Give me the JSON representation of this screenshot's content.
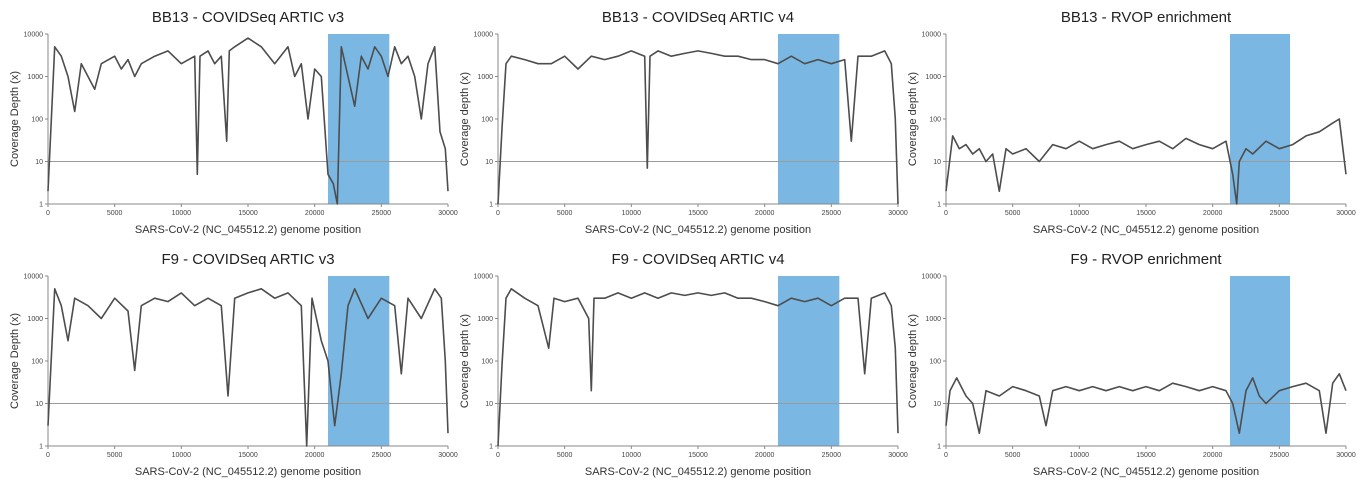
{
  "figure": {
    "x_axis_label": "SARS-CoV-2 (NC_045512.2) genome position",
    "xlim": [
      0,
      30000
    ],
    "ylim": [
      1,
      10000
    ],
    "yscale": "log",
    "x_ticks": [
      "0",
      "5000",
      "10000",
      "15000",
      "20000",
      "25000",
      "30000"
    ],
    "y_ticks": [
      "1",
      "10",
      "100",
      "1000",
      "10000"
    ],
    "reference_line_y": 10,
    "colors": {
      "line": "#4d4d4d",
      "highlight": "#7ab8e3",
      "reference": "#9a9a9a"
    }
  },
  "chart_data": [
    {
      "type": "line",
      "title": "BB13 - COVIDSeq ARTIC v3",
      "xlabel": "SARS-CoV-2 (NC_045512.2) genome position",
      "ylabel": "Coverage Depth (x)",
      "xlim": [
        0,
        30000
      ],
      "ylim": [
        1,
        10000
      ],
      "yscale": "log",
      "highlight_region": [
        21000,
        25600
      ],
      "x": [
        0,
        500,
        1000,
        1500,
        2000,
        2500,
        3000,
        3500,
        4000,
        5000,
        5500,
        6000,
        6500,
        7000,
        8000,
        9000,
        10000,
        11000,
        11200,
        11400,
        12000,
        12500,
        13000,
        13400,
        13600,
        14000,
        15000,
        16000,
        17000,
        18000,
        18500,
        19000,
        19500,
        20000,
        20500,
        21000,
        21400,
        21700,
        22000,
        22500,
        23000,
        23500,
        24000,
        24500,
        25000,
        25500,
        26000,
        26500,
        27000,
        27500,
        28000,
        28500,
        29000,
        29400,
        29800,
        30000
      ],
      "y": [
        2,
        5000,
        3000,
        1000,
        150,
        2000,
        1000,
        500,
        2000,
        3000,
        1500,
        2500,
        1000,
        2000,
        3000,
        4000,
        2000,
        3000,
        5,
        3000,
        4000,
        2000,
        3000,
        30,
        4000,
        5000,
        8000,
        5000,
        2000,
        5000,
        1000,
        2000,
        100,
        1500,
        1000,
        5,
        3,
        1,
        5000,
        1000,
        200,
        3000,
        1500,
        5000,
        3000,
        1000,
        5000,
        2000,
        3000,
        1000,
        100,
        2000,
        5000,
        50,
        20,
        2
      ]
    },
    {
      "type": "line",
      "title": "BB13 - COVIDSeq ARTIC v4",
      "xlabel": "SARS-CoV-2 (NC_045512.2) genome position",
      "ylabel": "Coverage depth (x)",
      "xlim": [
        0,
        30000
      ],
      "ylim": [
        1,
        10000
      ],
      "yscale": "log",
      "highlight_region": [
        21000,
        25600
      ],
      "x": [
        0,
        300,
        600,
        1000,
        2000,
        3000,
        4000,
        5000,
        6000,
        7000,
        8000,
        9000,
        10000,
        11000,
        11200,
        11400,
        12000,
        13000,
        14000,
        15000,
        16000,
        17000,
        18000,
        19000,
        20000,
        21000,
        22000,
        23000,
        24000,
        25000,
        26000,
        26500,
        27000,
        28000,
        29000,
        29500,
        29800,
        30000
      ],
      "y": [
        1,
        60,
        2000,
        3000,
        2500,
        2000,
        2000,
        3000,
        1500,
        3000,
        2500,
        3000,
        4000,
        3000,
        7,
        3000,
        4000,
        3000,
        3500,
        4000,
        3500,
        3000,
        3000,
        2500,
        2500,
        2000,
        3000,
        2000,
        2500,
        2000,
        2500,
        30,
        3000,
        3000,
        4000,
        2000,
        100,
        1
      ]
    },
    {
      "type": "line",
      "title": "BB13 - RVOP enrichment",
      "xlabel": "SARS-CoV-2 (NC_045512.2) genome position",
      "ylabel": "Coverage depth (x)",
      "xlim": [
        0,
        30000
      ],
      "ylim": [
        1,
        10000
      ],
      "yscale": "log",
      "highlight_region": [
        21300,
        25800
      ],
      "x": [
        0,
        500,
        1000,
        1500,
        2000,
        2500,
        3000,
        3500,
        4000,
        4500,
        5000,
        6000,
        7000,
        8000,
        9000,
        10000,
        11000,
        12000,
        13000,
        14000,
        15000,
        16000,
        17000,
        18000,
        19000,
        20000,
        21000,
        21500,
        21800,
        22000,
        22500,
        23000,
        24000,
        25000,
        26000,
        27000,
        28000,
        29000,
        29500,
        30000
      ],
      "y": [
        2,
        40,
        20,
        25,
        15,
        20,
        10,
        15,
        2,
        20,
        15,
        20,
        10,
        25,
        20,
        30,
        20,
        25,
        30,
        20,
        25,
        30,
        20,
        35,
        25,
        20,
        30,
        5,
        1,
        10,
        20,
        15,
        30,
        20,
        25,
        40,
        50,
        80,
        100,
        5
      ]
    },
    {
      "type": "line",
      "title": "F9 - COVIDSeq ARTIC v3",
      "xlabel": "SARS-CoV-2 (NC_045512.2) genome position",
      "ylabel": "Coverage Depth (x)",
      "xlim": [
        0,
        30000
      ],
      "ylim": [
        1,
        10000
      ],
      "yscale": "log",
      "highlight_region": [
        21000,
        25600
      ],
      "x": [
        0,
        500,
        1000,
        1500,
        2000,
        3000,
        4000,
        5000,
        6000,
        6500,
        7000,
        8000,
        9000,
        10000,
        11000,
        12000,
        13000,
        13500,
        14000,
        15000,
        16000,
        17000,
        18000,
        19000,
        19400,
        19800,
        20500,
        21000,
        21500,
        22000,
        22500,
        23000,
        24000,
        25000,
        26000,
        26500,
        27000,
        28000,
        29000,
        29500,
        29800,
        30000
      ],
      "y": [
        3,
        5000,
        2000,
        300,
        3000,
        2000,
        1000,
        3000,
        1500,
        60,
        2000,
        3000,
        2500,
        4000,
        2000,
        3000,
        2000,
        15,
        3000,
        4000,
        5000,
        3000,
        4000,
        2000,
        1,
        3000,
        300,
        100,
        3,
        50,
        2000,
        5000,
        1000,
        3000,
        2000,
        50,
        3000,
        1000,
        5000,
        3000,
        100,
        2
      ]
    },
    {
      "type": "line",
      "title": "F9 - COVIDSeq ARTIC v4",
      "xlabel": "SARS-CoV-2 (NC_045512.2) genome position",
      "ylabel": "Coverage depth (x)",
      "xlim": [
        0,
        30000
      ],
      "ylim": [
        1,
        10000
      ],
      "yscale": "log",
      "highlight_region": [
        21000,
        25600
      ],
      "x": [
        0,
        300,
        600,
        1000,
        2000,
        3000,
        3800,
        4200,
        5000,
        6000,
        6800,
        7000,
        7200,
        8000,
        9000,
        10000,
        11000,
        12000,
        13000,
        14000,
        15000,
        16000,
        17000,
        18000,
        19000,
        20000,
        21000,
        22000,
        23000,
        24000,
        25000,
        26000,
        27000,
        27500,
        28000,
        29000,
        29500,
        29800,
        30000
      ],
      "y": [
        1,
        80,
        3000,
        5000,
        3000,
        2000,
        200,
        3000,
        2500,
        3000,
        1000,
        20,
        3000,
        3000,
        4000,
        3000,
        4000,
        3000,
        4000,
        3500,
        4000,
        3500,
        4000,
        3000,
        3000,
        2500,
        2000,
        3000,
        2500,
        3000,
        2000,
        3000,
        3000,
        50,
        3000,
        4000,
        2000,
        200,
        2
      ]
    },
    {
      "type": "line",
      "title": "F9 - RVOP enrichment",
      "xlabel": "SARS-CoV-2 (NC_045512.2) genome position",
      "ylabel": "Coverage depth (x)",
      "xlim": [
        0,
        30000
      ],
      "ylim": [
        1,
        10000
      ],
      "yscale": "log",
      "highlight_region": [
        21300,
        25800
      ],
      "x": [
        0,
        300,
        800,
        1500,
        2000,
        2500,
        3000,
        4000,
        5000,
        6000,
        7000,
        7500,
        8000,
        9000,
        10000,
        11000,
        12000,
        13000,
        14000,
        15000,
        16000,
        17000,
        18000,
        19000,
        20000,
        21000,
        21500,
        22000,
        22500,
        23000,
        23500,
        24000,
        25000,
        26000,
        27000,
        28000,
        28500,
        29000,
        29500,
        30000
      ],
      "y": [
        3,
        20,
        40,
        15,
        10,
        2,
        20,
        15,
        25,
        20,
        15,
        3,
        20,
        25,
        20,
        25,
        20,
        25,
        20,
        25,
        20,
        30,
        25,
        20,
        25,
        20,
        10,
        2,
        20,
        40,
        15,
        10,
        20,
        25,
        30,
        20,
        2,
        30,
        50,
        20
      ]
    }
  ]
}
